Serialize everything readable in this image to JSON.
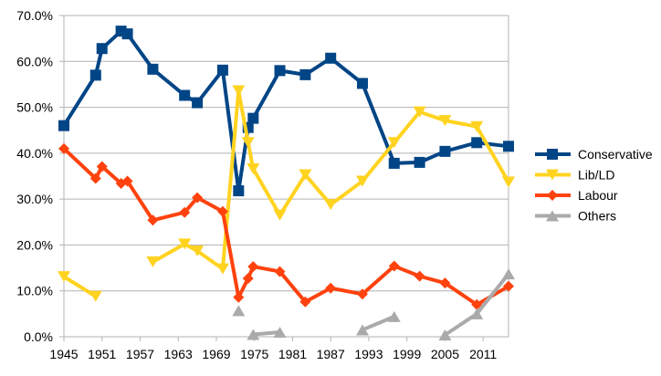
{
  "chart_data": {
    "type": "line",
    "title": "",
    "xlabel": "",
    "ylabel": "",
    "xlim": [
      1945,
      2015
    ],
    "ylim": [
      0,
      70
    ],
    "grid": true,
    "legend_position": "right",
    "x_tick_labels": [
      "1945",
      "1951",
      "1957",
      "1963",
      "1969",
      "1975",
      "1981",
      "1987",
      "1993",
      "1999",
      "2005",
      "2011"
    ],
    "y_tick_labels": [
      "0.0%",
      "10.0%",
      "20.0%",
      "30.0%",
      "40.0%",
      "50.0%",
      "60.0%",
      "70.0%"
    ],
    "x": [
      1945,
      1950,
      1951,
      1954,
      1955,
      1959,
      1964,
      1966,
      1970,
      1972.5,
      1974,
      1974.8,
      1979,
      1983,
      1987,
      1992,
      1997,
      2001,
      2005,
      2010,
      2015
    ],
    "series": [
      {
        "name": "Conservative",
        "color": "#004586",
        "marker": "square",
        "values": [
          46.0,
          57.0,
          62.8,
          66.6,
          66.0,
          58.3,
          52.6,
          51.0,
          58.1,
          31.8,
          45.6,
          47.6,
          58.0,
          57.1,
          60.7,
          55.2,
          37.8,
          38.0,
          40.4,
          42.3,
          41.5
        ]
      },
      {
        "name": "Lib/LD",
        "color": "#ffd320",
        "marker": "triangle-down",
        "values": [
          13.1,
          8.8,
          null,
          null,
          null,
          16.3,
          20.2,
          18.7,
          14.8,
          53.6,
          42.3,
          36.6,
          26.5,
          35.3,
          28.8,
          33.9,
          42.3,
          49.0,
          47.1,
          45.8,
          33.7
        ]
      },
      {
        "name": "Labour",
        "color": "#ff420e",
        "marker": "diamond",
        "values": [
          41.0,
          34.5,
          37.1,
          33.4,
          33.9,
          25.4,
          27.1,
          30.3,
          27.3,
          8.6,
          12.7,
          15.3,
          14.2,
          7.6,
          10.6,
          9.3,
          15.4,
          13.2,
          11.7,
          7.0,
          11.0
        ]
      },
      {
        "name": "Others",
        "color": "#aaaaaa",
        "marker": "triangle-up",
        "values": [
          null,
          null,
          null,
          null,
          null,
          null,
          null,
          null,
          null,
          5.7,
          null,
          0.5,
          1.0,
          null,
          null,
          1.5,
          4.4,
          null,
          0.4,
          5.0,
          13.7
        ]
      }
    ]
  }
}
